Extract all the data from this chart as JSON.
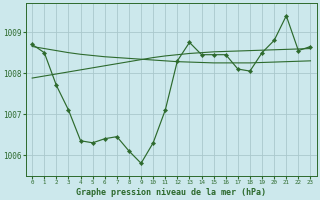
{
  "x": [
    0,
    1,
    2,
    3,
    4,
    5,
    6,
    7,
    8,
    9,
    10,
    11,
    12,
    13,
    14,
    15,
    16,
    17,
    18,
    19,
    20,
    21,
    22,
    23
  ],
  "main_line": [
    1008.7,
    1008.5,
    1007.7,
    1007.1,
    1006.35,
    1006.3,
    1006.4,
    1006.45,
    1006.1,
    1005.8,
    1006.3,
    1007.1,
    1008.3,
    1008.75,
    1008.45,
    1008.45,
    1008.45,
    1008.1,
    1008.05,
    1008.5,
    1008.8,
    1009.4,
    1008.55,
    1008.65
  ],
  "trend_up": [
    1007.88,
    1007.93,
    1007.98,
    1008.03,
    1008.08,
    1008.13,
    1008.18,
    1008.23,
    1008.28,
    1008.33,
    1008.38,
    1008.42,
    1008.45,
    1008.48,
    1008.5,
    1008.52,
    1008.53,
    1008.54,
    1008.55,
    1008.56,
    1008.57,
    1008.58,
    1008.59,
    1008.6
  ],
  "trend_down": [
    1008.65,
    1008.6,
    1008.55,
    1008.5,
    1008.46,
    1008.43,
    1008.4,
    1008.38,
    1008.36,
    1008.34,
    1008.32,
    1008.3,
    1008.28,
    1008.27,
    1008.26,
    1008.25,
    1008.25,
    1008.25,
    1008.25,
    1008.26,
    1008.27,
    1008.28,
    1008.29,
    1008.3
  ],
  "line_color": "#2d6a2d",
  "bg_color": "#cce8ec",
  "grid_color": "#aac8cc",
  "xlabel": "Graphe pression niveau de la mer (hPa)",
  "ylim": [
    1005.5,
    1009.7
  ],
  "yticks": [
    1006,
    1007,
    1008,
    1009
  ],
  "xticks": [
    0,
    1,
    2,
    3,
    4,
    5,
    6,
    7,
    8,
    9,
    10,
    11,
    12,
    13,
    14,
    15,
    16,
    17,
    18,
    19,
    20,
    21,
    22,
    23
  ]
}
